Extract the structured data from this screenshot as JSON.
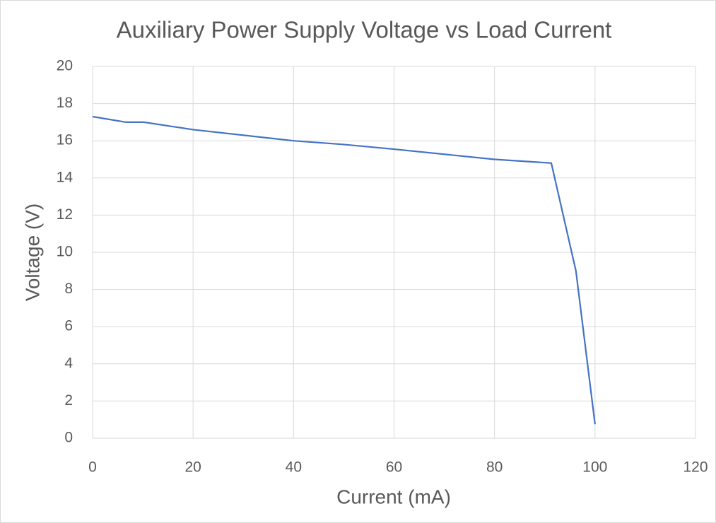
{
  "chart_data": {
    "type": "line",
    "title": "Auxiliary Power Supply Voltage vs Load Current",
    "xlabel": "Current (mA)",
    "ylabel": "Voltage (V)",
    "series": [
      {
        "name": "Voltage",
        "color": "#4472c4",
        "x": [
          0,
          6.7,
          10.2,
          20,
          40,
          50,
          60,
          80,
          91.3,
          96.2,
          100
        ],
        "values": [
          17.3,
          17.0,
          17.0,
          16.6,
          16.0,
          15.8,
          15.55,
          15.0,
          14.8,
          9.0,
          0.75
        ]
      }
    ],
    "xlim": [
      0,
      120
    ],
    "xticks": [
      0,
      20,
      40,
      60,
      80,
      100,
      120
    ],
    "ylim": [
      0,
      20
    ],
    "yticks": [
      0,
      2,
      4,
      6,
      8,
      10,
      12,
      14,
      16,
      18,
      20
    ],
    "grid": true
  }
}
